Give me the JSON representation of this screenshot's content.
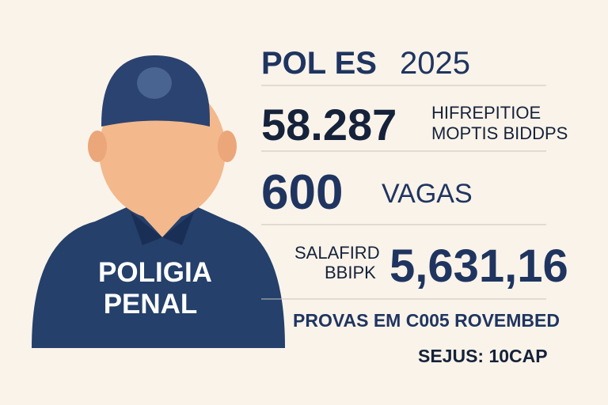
{
  "figure": {
    "badge": [
      "POLIGIA",
      "PENAL"
    ]
  },
  "headline": {
    "title": "POL ES",
    "year": "2025"
  },
  "stats": [
    {
      "value": "58.287",
      "label": [
        "HIFREPITIOE",
        "MOPTIS BIDDPS"
      ]
    },
    {
      "value": "600",
      "label": [
        "VAGAS"
      ]
    },
    {
      "value": "5,631,16",
      "label": [
        "SALAFIRD",
        "BBIPK"
      ]
    }
  ],
  "footer": {
    "line1": "PROVAS EM C005 ROVEMBED",
    "line2": "SEJUS: 10CAP"
  }
}
